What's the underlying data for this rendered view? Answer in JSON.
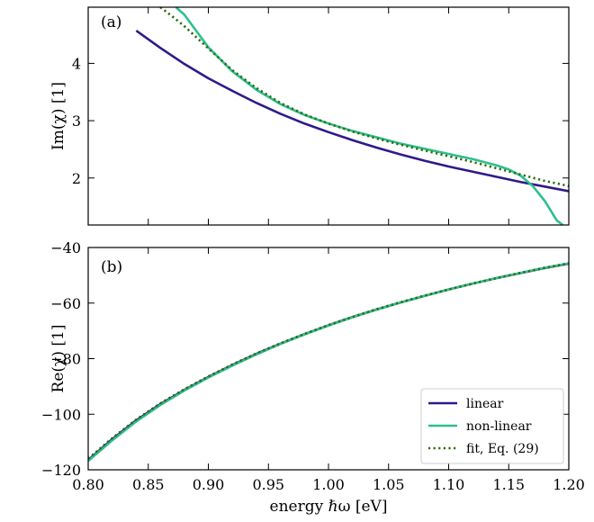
{
  "chart_data": [
    {
      "panel": "(a)",
      "type": "line",
      "ylabel": "Im(χ) [1]",
      "xlabel": "",
      "xlim": [
        0.8,
        1.2
      ],
      "ylim": [
        1.18,
        4.98
      ],
      "yticks": [
        2,
        3,
        4
      ],
      "ytick_labels": [
        "2",
        "3",
        "4"
      ],
      "xticks": [
        0.8,
        0.85,
        0.9,
        0.95,
        1.0,
        1.05,
        1.1,
        1.15,
        1.2
      ],
      "grid": false,
      "series": [
        {
          "name": "linear",
          "color": "#2e1a8a",
          "style": "solid",
          "x": [
            0.84,
            0.86,
            0.88,
            0.9,
            0.92,
            0.94,
            0.96,
            0.98,
            1.0,
            1.02,
            1.04,
            1.06,
            1.08,
            1.1,
            1.12,
            1.14,
            1.16,
            1.18,
            1.2
          ],
          "y": [
            4.57,
            4.27,
            3.99,
            3.74,
            3.52,
            3.31,
            3.12,
            2.95,
            2.8,
            2.66,
            2.53,
            2.41,
            2.3,
            2.2,
            2.11,
            2.02,
            1.93,
            1.85,
            1.77
          ]
        },
        {
          "name": "non-linear",
          "color": "#2ebf8c",
          "style": "solid",
          "x": [
            0.873,
            0.88,
            0.9,
            0.92,
            0.94,
            0.96,
            0.98,
            1.0,
            1.02,
            1.04,
            1.06,
            1.08,
            1.1,
            1.12,
            1.14,
            1.15,
            1.16,
            1.17,
            1.18,
            1.185,
            1.19,
            1.195
          ],
          "y": [
            4.98,
            4.85,
            4.28,
            3.86,
            3.54,
            3.29,
            3.1,
            2.95,
            2.82,
            2.71,
            2.6,
            2.51,
            2.42,
            2.33,
            2.22,
            2.15,
            2.04,
            1.86,
            1.6,
            1.43,
            1.26,
            1.18
          ]
        },
        {
          "name": "fit, Eq. (29)",
          "color": "#2f6b12",
          "style": "dotted",
          "x": [
            0.86,
            0.87,
            0.88,
            0.9,
            0.92,
            0.94,
            0.96,
            0.98,
            1.0,
            1.02,
            1.04,
            1.06,
            1.08,
            1.1,
            1.12,
            1.14,
            1.16,
            1.18,
            1.2
          ],
          "y": [
            4.98,
            4.82,
            4.65,
            4.26,
            3.88,
            3.57,
            3.31,
            3.11,
            2.95,
            2.81,
            2.69,
            2.58,
            2.48,
            2.38,
            2.28,
            2.17,
            2.06,
            1.95,
            1.86
          ]
        }
      ]
    },
    {
      "panel": "(b)",
      "type": "line",
      "ylabel": "Re(χ) [1]",
      "xlabel": "energy ℏω [eV]",
      "xlim": [
        0.8,
        1.2
      ],
      "ylim": [
        -120,
        -40
      ],
      "yticks": [
        -120,
        -100,
        -80,
        -60,
        -40
      ],
      "ytick_labels": [
        "−120",
        "−100",
        "−80",
        "−60",
        "−40"
      ],
      "xticks": [
        0.8,
        0.85,
        0.9,
        0.95,
        1.0,
        1.05,
        1.1,
        1.15,
        1.2
      ],
      "xtick_labels": [
        "0.80",
        "0.85",
        "0.90",
        "0.95",
        "1.00",
        "1.05",
        "1.10",
        "1.15",
        "1.20"
      ],
      "grid": false,
      "legend_position": "lower-right",
      "series": [
        {
          "name": "linear",
          "color": "#2e1a8a",
          "style": "solid",
          "x": [
            0.8,
            0.82,
            0.84,
            0.86,
            0.88,
            0.9,
            0.92,
            0.94,
            0.96,
            0.98,
            1.0,
            1.02,
            1.04,
            1.06,
            1.08,
            1.1,
            1.12,
            1.14,
            1.16,
            1.18,
            1.2
          ],
          "y": [
            -116.5,
            -109.0,
            -102.2,
            -96.4,
            -91.3,
            -86.6,
            -82.3,
            -78.3,
            -74.6,
            -71.2,
            -68.0,
            -65.0,
            -62.3,
            -59.8,
            -57.4,
            -55.1,
            -53.0,
            -51.0,
            -49.2,
            -47.4,
            -45.8
          ]
        },
        {
          "name": "non-linear",
          "color": "#2ebf8c",
          "style": "solid",
          "x": [
            0.8,
            0.82,
            0.84,
            0.86,
            0.88,
            0.9,
            0.92,
            0.94,
            0.96,
            0.98,
            1.0,
            1.02,
            1.04,
            1.06,
            1.08,
            1.1,
            1.12,
            1.14,
            1.16,
            1.18,
            1.2
          ],
          "y": [
            -116.8,
            -109.4,
            -102.6,
            -96.7,
            -91.5,
            -86.8,
            -82.5,
            -78.5,
            -74.7,
            -71.3,
            -68.1,
            -65.1,
            -62.4,
            -59.8,
            -57.4,
            -55.1,
            -53.0,
            -51.0,
            -49.1,
            -47.3,
            -45.7
          ]
        },
        {
          "name": "fit, Eq. (29)",
          "color": "#2f6b12",
          "style": "dotted",
          "x": [
            0.8,
            0.82,
            0.84,
            0.86,
            0.88,
            0.9,
            0.92,
            0.94,
            0.96,
            0.98,
            1.0,
            1.02,
            1.04,
            1.06,
            1.08,
            1.1,
            1.12,
            1.14,
            1.16,
            1.18,
            1.2
          ],
          "y": [
            -116.0,
            -108.6,
            -101.9,
            -96.1,
            -91.0,
            -86.4,
            -82.1,
            -78.1,
            -74.5,
            -71.1,
            -67.9,
            -65.0,
            -62.2,
            -59.7,
            -57.3,
            -55.1,
            -53.0,
            -51.0,
            -49.1,
            -47.3,
            -45.7
          ]
        }
      ]
    }
  ]
}
